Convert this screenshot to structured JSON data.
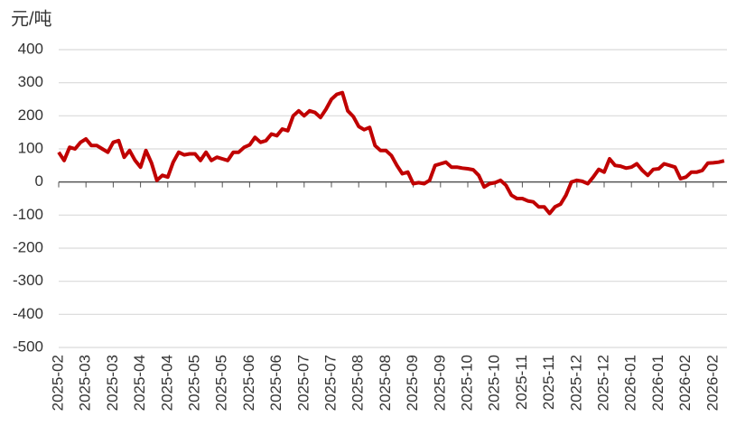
{
  "chart_data": {
    "type": "line",
    "y_label": "元/吨",
    "categories": [
      "2025-02",
      null,
      null,
      null,
      null,
      "2025-03",
      null,
      null,
      null,
      null,
      "2025-03",
      null,
      null,
      null,
      null,
      "2025-04",
      null,
      null,
      null,
      null,
      "2025-04",
      null,
      null,
      null,
      null,
      "2025-05",
      null,
      null,
      null,
      null,
      "2025-05",
      null,
      null,
      null,
      null,
      "2025-06",
      null,
      null,
      null,
      null,
      "2025-06",
      null,
      null,
      null,
      null,
      "2025-07",
      null,
      null,
      null,
      null,
      "2025-07",
      null,
      null,
      null,
      null,
      "2025-08",
      null,
      null,
      null,
      null,
      "2025-08",
      null,
      null,
      null,
      null,
      "2025-09",
      null,
      null,
      null,
      null,
      "2025-09",
      null,
      null,
      null,
      null,
      "2025-10",
      null,
      null,
      null,
      null,
      "2025-10",
      null,
      null,
      null,
      null,
      "2025-11",
      null,
      null,
      null,
      null,
      "2025-11",
      null,
      null,
      null,
      null,
      "2025-12",
      null,
      null,
      null,
      null,
      "2025-12",
      null,
      null,
      null,
      null,
      "2026-01",
      null,
      null,
      null,
      null,
      "2026-01",
      null,
      null,
      null,
      null,
      "2026-02",
      null,
      null,
      null,
      null,
      "2026-02",
      null,
      null
    ],
    "series": [
      {
        "color": "#c00000",
        "values": [
          90,
          65,
          105,
          100,
          120,
          130,
          110,
          110,
          100,
          90,
          120,
          125,
          75,
          95,
          65,
          45,
          95,
          58,
          5,
          20,
          15,
          60,
          90,
          82,
          85,
          85,
          65,
          90,
          65,
          75,
          70,
          65,
          90,
          90,
          105,
          112,
          135,
          120,
          125,
          145,
          140,
          160,
          155,
          200,
          215,
          200,
          215,
          210,
          195,
          220,
          250,
          265,
          270,
          215,
          198,
          168,
          158,
          165,
          110,
          95,
          95,
          80,
          50,
          25,
          30,
          -5,
          -2,
          -5,
          5,
          50,
          55,
          60,
          45,
          45,
          42,
          40,
          37,
          20,
          -15,
          -5,
          -2,
          5,
          -10,
          -40,
          -50,
          -50,
          -57,
          -60,
          -75,
          -75,
          -95,
          -75,
          -67,
          -40,
          0,
          5,
          2,
          -5,
          15,
          38,
          30,
          70,
          50,
          48,
          42,
          45,
          55,
          35,
          20,
          38,
          40,
          55,
          50,
          45,
          10,
          15,
          30,
          30,
          35,
          57,
          58,
          60,
          64
        ]
      }
    ],
    "ylim": [
      -500,
      400
    ],
    "yticks": [
      -500,
      -400,
      -300,
      -200,
      -100,
      0,
      100,
      200,
      300,
      400
    ],
    "grid": true
  }
}
